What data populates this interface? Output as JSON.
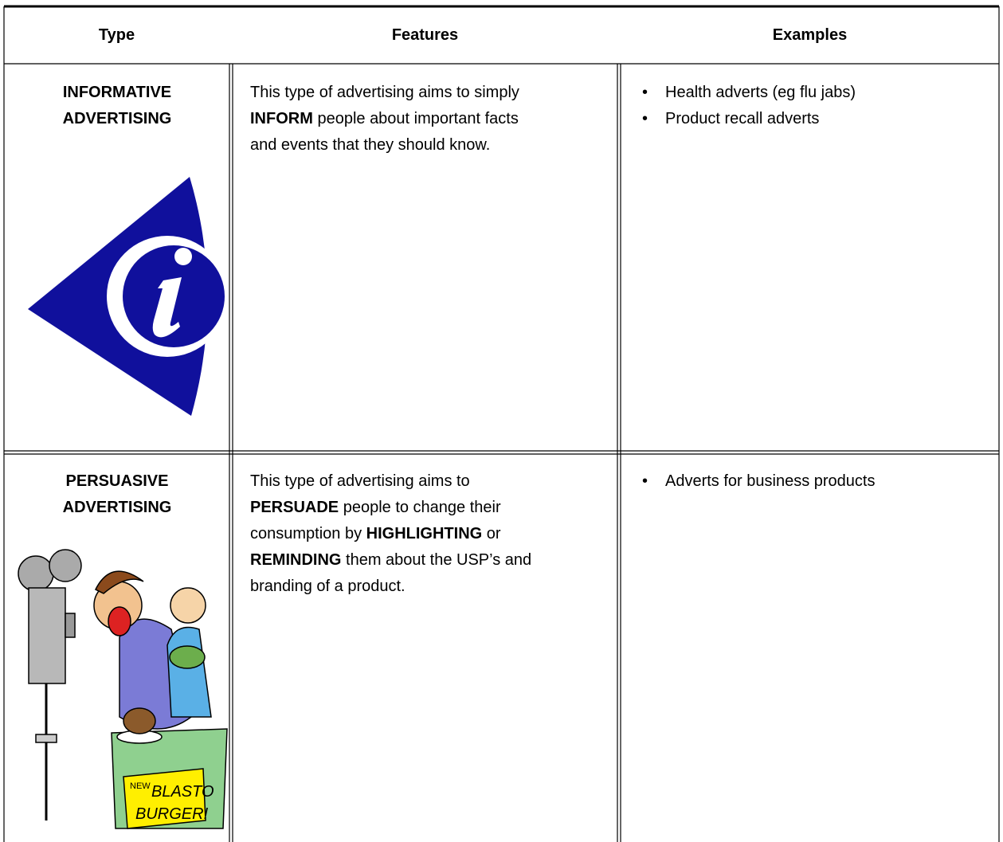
{
  "header": {
    "columns": [
      "Type",
      "Features",
      "Examples"
    ]
  },
  "table": {
    "rows": [
      {
        "type": "INFORMATIVE ADVERTISING",
        "features": [
          "This type of advertising aims to simply ",
          "INFORM",
          " people about important facts and events that they should know."
        ],
        "examples": [
          "Health adverts (eg flu jabs)",
          "Product recall adverts"
        ]
      },
      {
        "type": "PERSUASIVE ADVERTISING",
        "features": [
          "This type of advertising aims to ",
          "PERSUADE",
          " people to change their consumption by ",
          "HIGHLIGHTING",
          " or ",
          "REMINDING",
          " them about the USP’s and branding of a product."
        ],
        "examples": [
          "Adverts for business products"
        ]
      }
    ]
  },
  "images": {
    "sign": [
      "NEW",
      "BLASTO",
      "BURGER!"
    ]
  }
}
